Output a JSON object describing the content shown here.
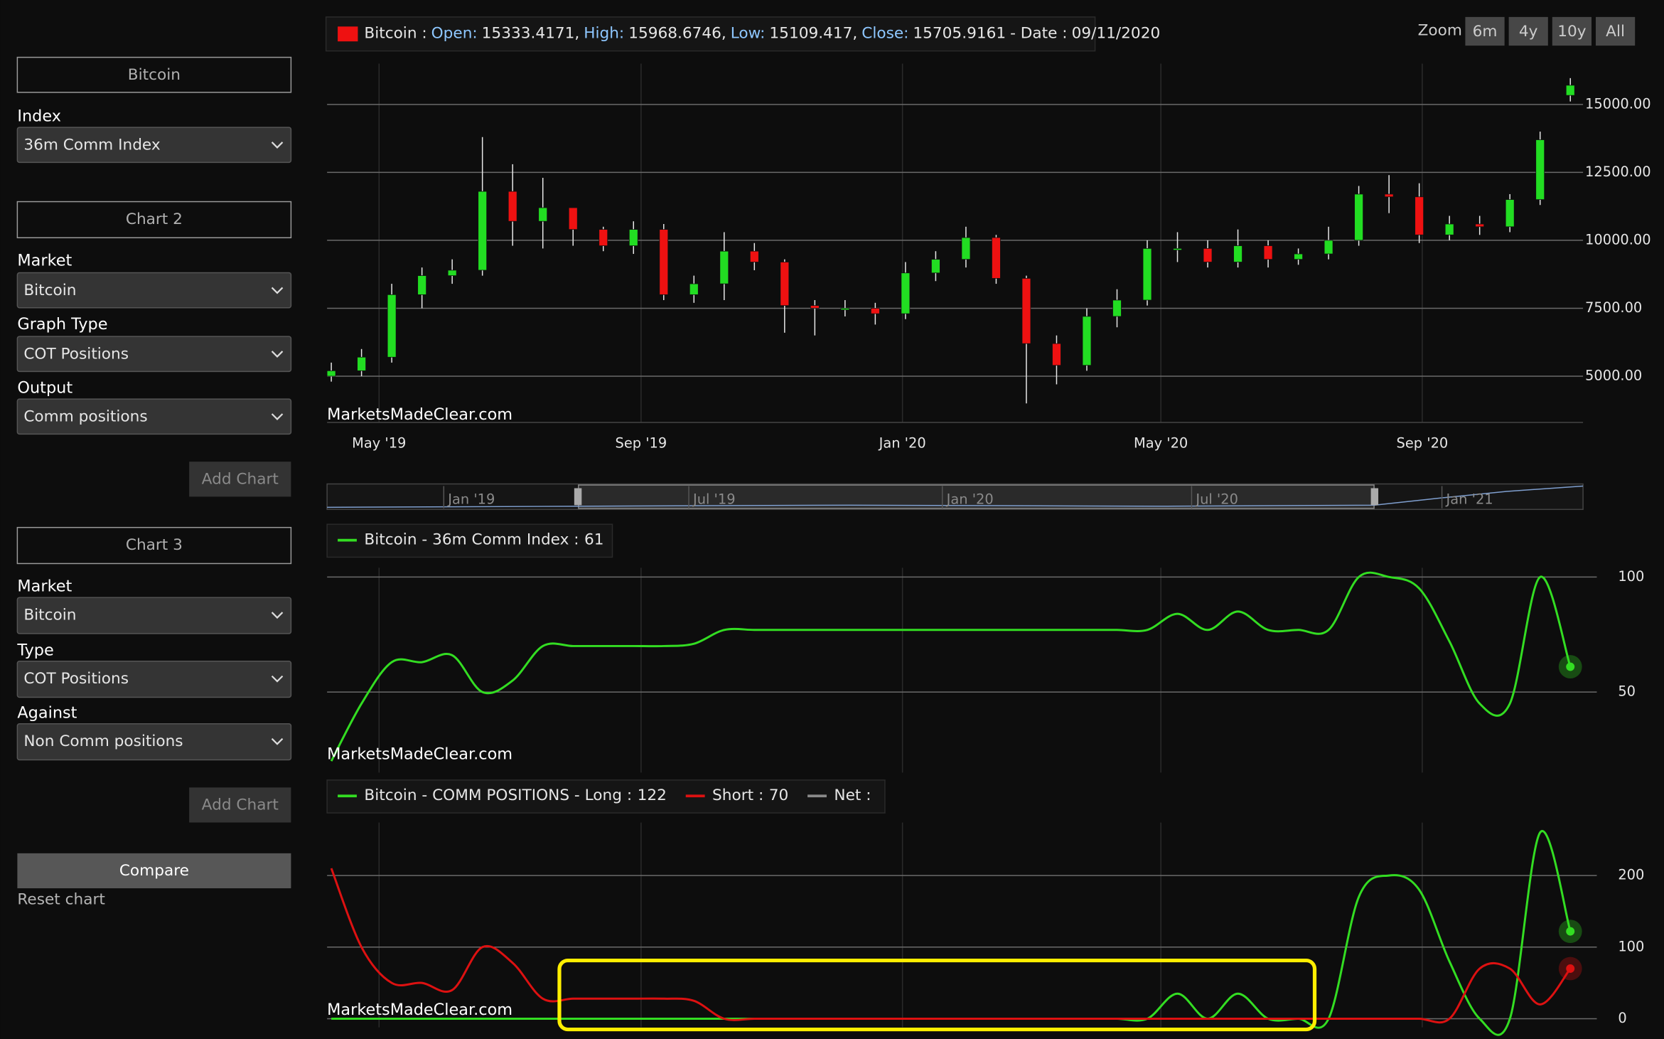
{
  "sidebar": {
    "chart1": {
      "title": "Bitcoin",
      "fields": [
        {
          "label": "Index",
          "value": "36m Comm Index"
        }
      ]
    },
    "chart2": {
      "title": "Chart 2",
      "fields": [
        {
          "label": "Market",
          "value": "Bitcoin"
        },
        {
          "label": "Graph Type",
          "value": "COT Positions"
        },
        {
          "label": "Output",
          "value": "Comm positions"
        }
      ],
      "button": "Add Chart"
    },
    "chart3": {
      "title": "Chart 3",
      "fields": [
        {
          "label": "Market",
          "value": "Bitcoin"
        },
        {
          "label": "Type",
          "value": "COT Positions"
        },
        {
          "label": "Against",
          "value": "Non Comm positions"
        }
      ],
      "button": "Add Chart"
    },
    "compare": "Compare",
    "reset": "Reset chart"
  },
  "zoom": {
    "label": "Zoom",
    "buttons": [
      "6m",
      "4y",
      "10y",
      "All"
    ]
  },
  "watermark": "MarketsMadeClear.com",
  "navigator": {
    "labels": [
      "Jan '19",
      "Jul '19",
      "Jan '20",
      "Jul '20",
      "Jan '21"
    ]
  },
  "chart_data": [
    {
      "type": "candlestick",
      "name": "Bitcoin :",
      "legend_labels": {
        "open": "Open:",
        "high": "High:",
        "low": "Low:",
        "close": "Close:",
        "date": "- Date :"
      },
      "separator": ",",
      "date": "09/11/2020",
      "color_up": "#22dd22",
      "color_down": "#ee1111",
      "open": [
        5000,
        5200,
        5700,
        8000,
        8700,
        8900,
        11800,
        10700,
        11200,
        10400,
        9800,
        10400,
        8000,
        8400,
        9600,
        9200,
        7600,
        7500,
        7500,
        7300,
        8800,
        9300,
        10100,
        8600,
        6200,
        5400,
        7200,
        7800,
        9700,
        9700,
        9200,
        9800,
        9300,
        9500,
        10000,
        11700,
        11600,
        10200,
        10600,
        10500,
        11500,
        15333.4171
      ],
      "high": [
        5500,
        6000,
        8400,
        9000,
        9300,
        13800,
        12800,
        12300,
        11200,
        10500,
        10700,
        10600,
        8700,
        10300,
        9900,
        9300,
        7800,
        7800,
        7700,
        9200,
        9600,
        10500,
        10200,
        8700,
        6500,
        7500,
        8200,
        10000,
        10300,
        10000,
        10400,
        10000,
        9700,
        10500,
        12000,
        12400,
        12100,
        10900,
        10900,
        11700,
        14000,
        15968.6746
      ],
      "low": [
        4800,
        5000,
        5500,
        7500,
        8400,
        8700,
        9800,
        9700,
        9800,
        9600,
        9500,
        7800,
        7700,
        7800,
        8900,
        6600,
        6500,
        7200,
        6900,
        7100,
        8500,
        9000,
        8400,
        4000,
        4700,
        5200,
        6800,
        7600,
        9200,
        9000,
        9000,
        9000,
        9100,
        9300,
        9800,
        11000,
        9900,
        10000,
        10200,
        10300,
        11300,
        15109.417
      ],
      "close": [
        5200,
        5700,
        8000,
        8700,
        8900,
        11800,
        10700,
        11200,
        10400,
        9800,
        10400,
        8000,
        8400,
        9600,
        9200,
        7600,
        7500,
        7500,
        7300,
        8800,
        9300,
        10100,
        8600,
        6200,
        5400,
        7200,
        7800,
        9700,
        9700,
        9200,
        9800,
        9300,
        9500,
        10000,
        11700,
        11600,
        10200,
        10600,
        10500,
        11500,
        13700,
        15705.9161
      ],
      "xlim": [
        -0.14,
        41.42
      ],
      "xticks": [
        {
          "value": 1.58,
          "label": "May '19"
        },
        {
          "value": 10.25,
          "label": "Sep '19"
        },
        {
          "value": 18.9,
          "label": "Jan '20"
        },
        {
          "value": 27.45,
          "label": "May '20"
        },
        {
          "value": 36.1,
          "label": "Sep '20"
        }
      ],
      "ylim": [
        3300,
        16500
      ],
      "yticks": [
        {
          "value": 5000,
          "label": "5000.00"
        },
        {
          "value": 7500,
          "label": "7500.00"
        },
        {
          "value": 10000,
          "label": "10000.00"
        },
        {
          "value": 12500,
          "label": "12500.00"
        },
        {
          "value": 15000,
          "label": "15000.00"
        }
      ],
      "grid": true
    },
    {
      "type": "line",
      "series": [
        {
          "name": "Bitcoin - 36m Comm Index :",
          "color": "#33dd22",
          "values": [
            20,
            45,
            63,
            63,
            66,
            50,
            55,
            70,
            70,
            70,
            70,
            70,
            71,
            77,
            77,
            77,
            77,
            77,
            77,
            77,
            77,
            77,
            77,
            77,
            77,
            77,
            77,
            77,
            84,
            77,
            85,
            77,
            77,
            77,
            100,
            100,
            95,
            72,
            45,
            45,
            100,
            61
          ]
        }
      ],
      "ylim": [
        15,
        104
      ],
      "yticks": [
        50,
        100
      ],
      "grid": true
    },
    {
      "type": "line",
      "series": [
        {
          "name": "Bitcoin - COMM POSITIONS - Long :",
          "color": "#33dd22",
          "values": [
            0,
            0,
            0,
            0,
            0,
            0,
            0,
            0,
            0,
            0,
            0,
            0,
            0,
            0,
            0,
            0,
            0,
            0,
            0,
            0,
            0,
            0,
            0,
            0,
            0,
            0,
            0,
            0,
            35,
            0,
            35,
            0,
            0,
            0,
            170,
            200,
            180,
            80,
            0,
            0,
            260,
            122
          ]
        },
        {
          "name": "Short :",
          "color": "#dd1111",
          "values": [
            210,
            100,
            50,
            50,
            40,
            100,
            78,
            28,
            28,
            28,
            28,
            28,
            25,
            0,
            0,
            0,
            0,
            0,
            0,
            0,
            0,
            0,
            0,
            0,
            0,
            0,
            0,
            0,
            0,
            0,
            0,
            0,
            0,
            0,
            0,
            0,
            0,
            0,
            70,
            70,
            20,
            70
          ]
        }
      ],
      "extra_legend": {
        "name": "Net :",
        "color": "#8a8a8a"
      },
      "ylim": [
        -12,
        274
      ],
      "yticks": [
        0,
        100,
        200
      ],
      "grid": true
    }
  ]
}
